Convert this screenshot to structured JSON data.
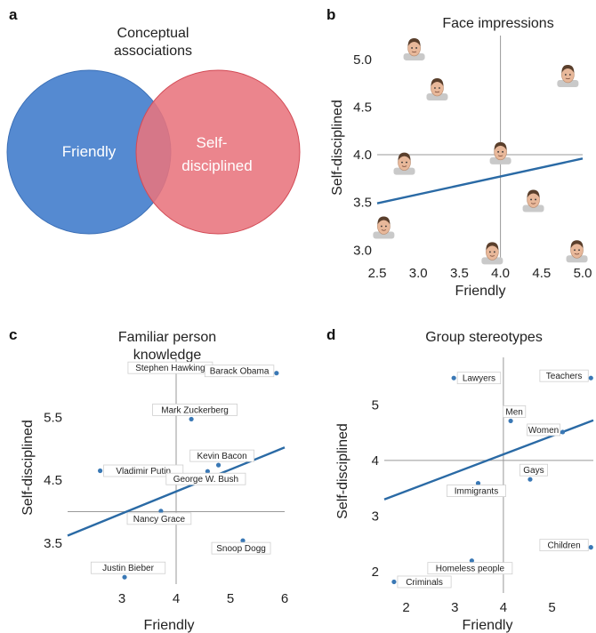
{
  "panels": {
    "a": {
      "letter": "a",
      "title_lines": [
        "Conceptual",
        "associations"
      ],
      "left_circle": {
        "label_lines": [
          "Friendly"
        ],
        "color": "#4f86d0"
      },
      "right_circle": {
        "label_lines": [
          "Self-",
          "disciplined"
        ],
        "color": "#e8747d"
      }
    },
    "b": {
      "letter": "b"
    },
    "c": {
      "letter": "c"
    },
    "d": {
      "letter": "d"
    }
  },
  "colors": {
    "regression_line": "#2a6aa5",
    "point": "#3a78b5",
    "axis_cross": "#999999"
  },
  "chart_data": [
    {
      "id": "b",
      "type": "scatter",
      "title_lines": [
        "Face impressions"
      ],
      "xlabel": "Friendly",
      "ylabel": "Self-disciplined",
      "xlim": [
        2.5,
        5.0
      ],
      "ylim": [
        2.9,
        5.25
      ],
      "xticks": [
        "2.5",
        "3.0",
        "3.5",
        "4.0",
        "4.5",
        "5.0"
      ],
      "yticks": [
        "3.0",
        "3.5",
        "4.0",
        "4.5",
        "5.0"
      ],
      "reference": {
        "x": 4.0,
        "y": 4.0
      },
      "regression": {
        "x": [
          2.5,
          5.0
        ],
        "y": [
          3.49,
          3.96
        ]
      },
      "points": [
        {
          "x": 2.95,
          "y": 5.12,
          "marker": "face-icon"
        },
        {
          "x": 3.23,
          "y": 4.7,
          "marker": "face-icon"
        },
        {
          "x": 4.82,
          "y": 4.84,
          "marker": "face-icon"
        },
        {
          "x": 2.83,
          "y": 3.92,
          "marker": "face-icon"
        },
        {
          "x": 4.0,
          "y": 4.03,
          "marker": "face-icon"
        },
        {
          "x": 4.4,
          "y": 3.53,
          "marker": "face-icon"
        },
        {
          "x": 2.58,
          "y": 3.25,
          "marker": "face-icon"
        },
        {
          "x": 3.9,
          "y": 2.98,
          "marker": "face-icon"
        },
        {
          "x": 4.93,
          "y": 3.0,
          "marker": "face-icon"
        }
      ]
    },
    {
      "id": "c",
      "type": "scatter",
      "title_lines": [
        "Familiar person",
        "knowledge"
      ],
      "xlabel": "Friendly",
      "ylabel": "Self-disciplined",
      "xlim": [
        2.0,
        6.0
      ],
      "ylim": [
        2.85,
        6.45
      ],
      "xticks": [
        "3",
        "4",
        "5",
        "6"
      ],
      "yticks": [
        "3.5",
        "4.5",
        "5.5"
      ],
      "reference": {
        "x": 4.0,
        "y": 4.0
      },
      "regression": {
        "x": [
          2.0,
          6.0
        ],
        "y": [
          3.62,
          5.02
        ]
      },
      "points": [
        {
          "x": 4.72,
          "y": 6.25,
          "label": "Stephen Hawking",
          "label_side": "left"
        },
        {
          "x": 5.85,
          "y": 6.2,
          "label": "Barack Obama",
          "label_side": "left"
        },
        {
          "x": 4.28,
          "y": 5.47,
          "label": "Mark Zuckerberg",
          "label_side": "above"
        },
        {
          "x": 2.6,
          "y": 4.65,
          "label": "Vladimir Putin",
          "label_side": "right"
        },
        {
          "x": 4.78,
          "y": 4.74,
          "label": "Kevin Bacon",
          "label_side": "above"
        },
        {
          "x": 4.58,
          "y": 4.64,
          "label": "George W. Bush",
          "label_side": "below"
        },
        {
          "x": 3.72,
          "y": 4.01,
          "label": "Nancy Grace",
          "label_side": "below"
        },
        {
          "x": 5.23,
          "y": 3.54,
          "label": "Snoop Dogg",
          "label_side": "below"
        },
        {
          "x": 3.05,
          "y": 2.96,
          "label": "Justin Bieber",
          "label_side": "above"
        }
      ]
    },
    {
      "id": "d",
      "type": "scatter",
      "title_lines": [
        "Group stereotypes"
      ],
      "xlabel": "Friendly",
      "ylabel": "Self-disciplined",
      "xlim": [
        1.55,
        5.85
      ],
      "ylim": [
        1.62,
        5.85
      ],
      "xticks": [
        "2",
        "3",
        "4",
        "5"
      ],
      "yticks": [
        "2",
        "3",
        "4",
        "5"
      ],
      "reference": {
        "x": 4.0,
        "y": 4.0
      },
      "regression": {
        "x": [
          1.55,
          5.85
        ],
        "y": [
          3.3,
          4.72
        ]
      },
      "points": [
        {
          "x": 2.98,
          "y": 5.48,
          "label": "Lawyers",
          "label_side": "right"
        },
        {
          "x": 5.8,
          "y": 5.48,
          "label": "Teachers",
          "label_side": "left"
        },
        {
          "x": 4.15,
          "y": 4.71,
          "label": "Men",
          "label_side": "above"
        },
        {
          "x": 5.22,
          "y": 4.51,
          "label": "Women",
          "label_side": "left"
        },
        {
          "x": 4.55,
          "y": 3.66,
          "label": "Gays",
          "label_side": "above"
        },
        {
          "x": 3.48,
          "y": 3.59,
          "label": "Immigrants",
          "label_side": "below"
        },
        {
          "x": 5.8,
          "y": 2.44,
          "label": "Children",
          "label_side": "left"
        },
        {
          "x": 3.35,
          "y": 2.2,
          "label": "Homeless people",
          "label_side": "below"
        },
        {
          "x": 1.75,
          "y": 1.82,
          "label": "Criminals",
          "label_side": "right"
        }
      ]
    }
  ]
}
